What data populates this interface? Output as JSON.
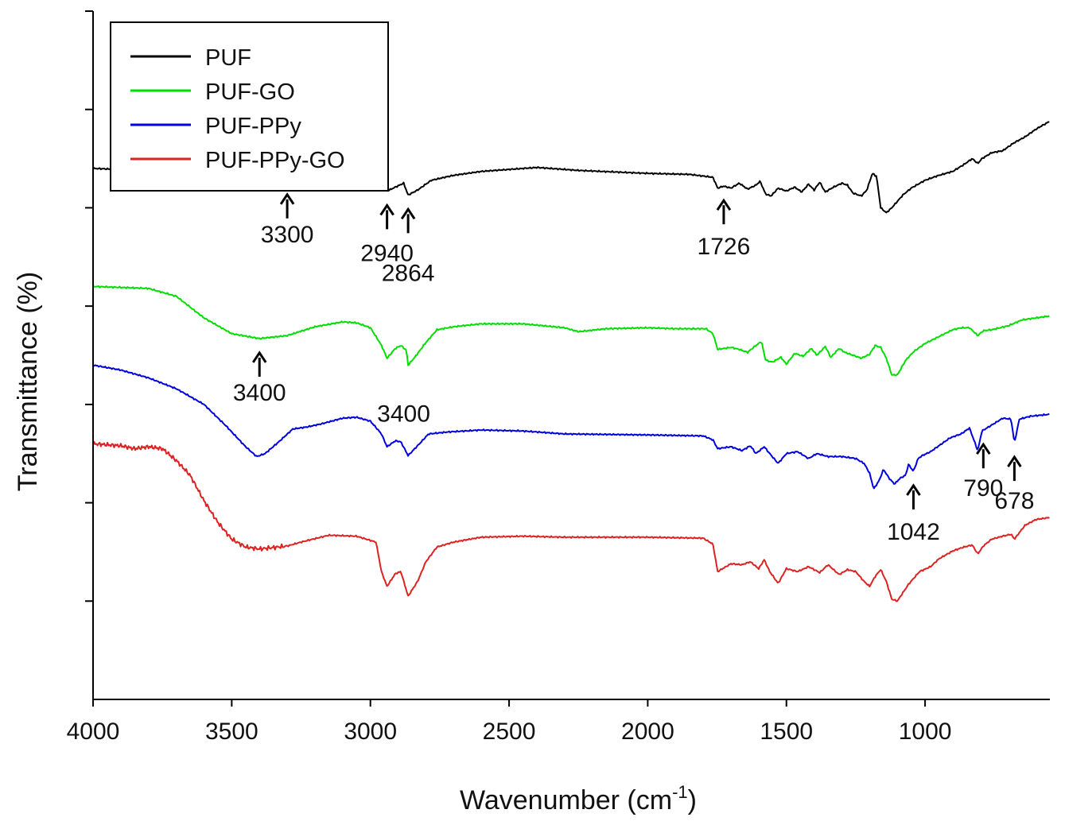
{
  "chart_data": {
    "type": "line",
    "title": "",
    "xlabel": "Wavenumber (cm",
    "xlabel_sup": "-1",
    "xlabel_close": ")",
    "ylabel": "Transmittance  (%)",
    "xlim": [
      4000,
      550
    ],
    "x_reversed": true,
    "xticks": [
      4000,
      3500,
      3000,
      2500,
      2000,
      1500,
      1000
    ],
    "ytick_count": 7,
    "ytick_labels_shown": false,
    "grid": false,
    "legend_position": "top-left",
    "series": [
      {
        "name": "PUF",
        "color": "#000000",
        "points": [
          [
            4000,
            7.4
          ],
          [
            3800,
            7.38
          ],
          [
            3600,
            7.34
          ],
          [
            3450,
            7.29
          ],
          [
            3300,
            7.28
          ],
          [
            3200,
            7.29
          ],
          [
            3050,
            7.32
          ],
          [
            2980,
            7.33
          ],
          [
            2940,
            7.17
          ],
          [
            2910,
            7.21
          ],
          [
            2880,
            7.25
          ],
          [
            2864,
            7.13
          ],
          [
            2830,
            7.18
          ],
          [
            2780,
            7.28
          ],
          [
            2700,
            7.33
          ],
          [
            2600,
            7.37
          ],
          [
            2500,
            7.39
          ],
          [
            2400,
            7.41
          ],
          [
            2350,
            7.4
          ],
          [
            2250,
            7.38
          ],
          [
            2000,
            7.35
          ],
          [
            1850,
            7.34
          ],
          [
            1765,
            7.31
          ],
          [
            1748,
            7.2
          ],
          [
            1726,
            7.22
          ],
          [
            1700,
            7.2
          ],
          [
            1670,
            7.25
          ],
          [
            1640,
            7.19
          ],
          [
            1610,
            7.23
          ],
          [
            1595,
            7.27
          ],
          [
            1575,
            7.14
          ],
          [
            1555,
            7.12
          ],
          [
            1530,
            7.2
          ],
          [
            1500,
            7.17
          ],
          [
            1470,
            7.21
          ],
          [
            1445,
            7.16
          ],
          [
            1420,
            7.24
          ],
          [
            1400,
            7.18
          ],
          [
            1380,
            7.26
          ],
          [
            1360,
            7.16
          ],
          [
            1330,
            7.21
          ],
          [
            1300,
            7.25
          ],
          [
            1280,
            7.23
          ],
          [
            1260,
            7.15
          ],
          [
            1230,
            7.12
          ],
          [
            1210,
            7.18
          ],
          [
            1190,
            7.35
          ],
          [
            1175,
            7.32
          ],
          [
            1160,
            7.0
          ],
          [
            1140,
            6.95
          ],
          [
            1120,
            7.0
          ],
          [
            1080,
            7.13
          ],
          [
            1050,
            7.2
          ],
          [
            1000,
            7.28
          ],
          [
            950,
            7.33
          ],
          [
            900,
            7.37
          ],
          [
            860,
            7.44
          ],
          [
            830,
            7.5
          ],
          [
            810,
            7.45
          ],
          [
            795,
            7.5
          ],
          [
            760,
            7.56
          ],
          [
            720,
            7.58
          ],
          [
            680,
            7.66
          ],
          [
            640,
            7.72
          ],
          [
            600,
            7.8
          ],
          [
            550,
            7.88
          ]
        ]
      },
      {
        "name": "PUF-GO",
        "color": "#00dd00",
        "points": [
          [
            4000,
            6.2
          ],
          [
            3800,
            6.18
          ],
          [
            3700,
            6.1
          ],
          [
            3600,
            5.88
          ],
          [
            3500,
            5.72
          ],
          [
            3400,
            5.67
          ],
          [
            3300,
            5.7
          ],
          [
            3200,
            5.79
          ],
          [
            3100,
            5.84
          ],
          [
            3050,
            5.83
          ],
          [
            3000,
            5.78
          ],
          [
            2960,
            5.6
          ],
          [
            2940,
            5.47
          ],
          [
            2910,
            5.57
          ],
          [
            2890,
            5.6
          ],
          [
            2870,
            5.55
          ],
          [
            2864,
            5.4
          ],
          [
            2840,
            5.48
          ],
          [
            2800,
            5.63
          ],
          [
            2760,
            5.76
          ],
          [
            2700,
            5.79
          ],
          [
            2600,
            5.82
          ],
          [
            2450,
            5.82
          ],
          [
            2300,
            5.78
          ],
          [
            2250,
            5.74
          ],
          [
            2150,
            5.77
          ],
          [
            2000,
            5.78
          ],
          [
            1900,
            5.77
          ],
          [
            1790,
            5.77
          ],
          [
            1765,
            5.72
          ],
          [
            1748,
            5.56
          ],
          [
            1700,
            5.58
          ],
          [
            1670,
            5.56
          ],
          [
            1640,
            5.53
          ],
          [
            1610,
            5.6
          ],
          [
            1590,
            5.64
          ],
          [
            1575,
            5.45
          ],
          [
            1550,
            5.43
          ],
          [
            1520,
            5.48
          ],
          [
            1500,
            5.41
          ],
          [
            1470,
            5.52
          ],
          [
            1440,
            5.49
          ],
          [
            1410,
            5.57
          ],
          [
            1390,
            5.5
          ],
          [
            1360,
            5.59
          ],
          [
            1340,
            5.48
          ],
          [
            1310,
            5.57
          ],
          [
            1290,
            5.53
          ],
          [
            1260,
            5.5
          ],
          [
            1230,
            5.47
          ],
          [
            1200,
            5.51
          ],
          [
            1180,
            5.6
          ],
          [
            1160,
            5.58
          ],
          [
            1140,
            5.47
          ],
          [
            1120,
            5.3
          ],
          [
            1100,
            5.3
          ],
          [
            1070,
            5.45
          ],
          [
            1040,
            5.54
          ],
          [
            1000,
            5.62
          ],
          [
            950,
            5.69
          ],
          [
            900,
            5.76
          ],
          [
            870,
            5.78
          ],
          [
            840,
            5.78
          ],
          [
            810,
            5.7
          ],
          [
            790,
            5.75
          ],
          [
            760,
            5.76
          ],
          [
            700,
            5.8
          ],
          [
            650,
            5.86
          ],
          [
            550,
            5.9
          ]
        ]
      },
      {
        "name": "PUF-PPy",
        "color": "#0000dd",
        "points": [
          [
            4000,
            5.4
          ],
          [
            3900,
            5.35
          ],
          [
            3800,
            5.27
          ],
          [
            3700,
            5.16
          ],
          [
            3600,
            5.0
          ],
          [
            3520,
            4.78
          ],
          [
            3450,
            4.57
          ],
          [
            3410,
            4.47
          ],
          [
            3380,
            4.5
          ],
          [
            3330,
            4.62
          ],
          [
            3280,
            4.75
          ],
          [
            3230,
            4.77
          ],
          [
            3180,
            4.8
          ],
          [
            3100,
            4.86
          ],
          [
            3050,
            4.87
          ],
          [
            3000,
            4.83
          ],
          [
            2960,
            4.7
          ],
          [
            2940,
            4.57
          ],
          [
            2910,
            4.63
          ],
          [
            2890,
            4.62
          ],
          [
            2864,
            4.48
          ],
          [
            2830,
            4.58
          ],
          [
            2790,
            4.7
          ],
          [
            2720,
            4.72
          ],
          [
            2600,
            4.74
          ],
          [
            2450,
            4.73
          ],
          [
            2300,
            4.7
          ],
          [
            2000,
            4.69
          ],
          [
            1800,
            4.68
          ],
          [
            1765,
            4.64
          ],
          [
            1748,
            4.55
          ],
          [
            1700,
            4.57
          ],
          [
            1660,
            4.53
          ],
          [
            1630,
            4.58
          ],
          [
            1610,
            4.5
          ],
          [
            1580,
            4.57
          ],
          [
            1560,
            4.5
          ],
          [
            1530,
            4.4
          ],
          [
            1500,
            4.5
          ],
          [
            1460,
            4.52
          ],
          [
            1420,
            4.45
          ],
          [
            1390,
            4.5
          ],
          [
            1350,
            4.47
          ],
          [
            1300,
            4.47
          ],
          [
            1250,
            4.45
          ],
          [
            1220,
            4.4
          ],
          [
            1200,
            4.3
          ],
          [
            1185,
            4.14
          ],
          [
            1165,
            4.23
          ],
          [
            1150,
            4.34
          ],
          [
            1130,
            4.25
          ],
          [
            1110,
            4.19
          ],
          [
            1090,
            4.25
          ],
          [
            1070,
            4.28
          ],
          [
            1060,
            4.39
          ],
          [
            1042,
            4.32
          ],
          [
            1025,
            4.45
          ],
          [
            1010,
            4.48
          ],
          [
            980,
            4.52
          ],
          [
            950,
            4.58
          ],
          [
            910,
            4.66
          ],
          [
            870,
            4.7
          ],
          [
            840,
            4.76
          ],
          [
            810,
            4.53
          ],
          [
            795,
            4.73
          ],
          [
            760,
            4.79
          ],
          [
            720,
            4.86
          ],
          [
            690,
            4.85
          ],
          [
            678,
            4.61
          ],
          [
            660,
            4.85
          ],
          [
            620,
            4.88
          ],
          [
            550,
            4.9
          ]
        ]
      },
      {
        "name": "PUF-PPy-GO",
        "color": "#dd2222",
        "points": [
          [
            4000,
            4.6
          ],
          [
            3900,
            4.58
          ],
          [
            3850,
            4.55
          ],
          [
            3800,
            4.57
          ],
          [
            3750,
            4.55
          ],
          [
            3700,
            4.43
          ],
          [
            3650,
            4.28
          ],
          [
            3600,
            4.02
          ],
          [
            3550,
            3.8
          ],
          [
            3500,
            3.63
          ],
          [
            3450,
            3.55
          ],
          [
            3400,
            3.53
          ],
          [
            3300,
            3.56
          ],
          [
            3250,
            3.6
          ],
          [
            3150,
            3.67
          ],
          [
            3050,
            3.66
          ],
          [
            2980,
            3.6
          ],
          [
            2960,
            3.3
          ],
          [
            2940,
            3.15
          ],
          [
            2910,
            3.28
          ],
          [
            2890,
            3.3
          ],
          [
            2864,
            3.05
          ],
          [
            2830,
            3.2
          ],
          [
            2800,
            3.4
          ],
          [
            2760,
            3.55
          ],
          [
            2700,
            3.6
          ],
          [
            2600,
            3.65
          ],
          [
            2450,
            3.66
          ],
          [
            2300,
            3.65
          ],
          [
            2000,
            3.65
          ],
          [
            1800,
            3.64
          ],
          [
            1765,
            3.58
          ],
          [
            1748,
            3.3
          ],
          [
            1700,
            3.38
          ],
          [
            1660,
            3.37
          ],
          [
            1630,
            3.4
          ],
          [
            1600,
            3.33
          ],
          [
            1580,
            3.42
          ],
          [
            1560,
            3.3
          ],
          [
            1530,
            3.18
          ],
          [
            1500,
            3.33
          ],
          [
            1460,
            3.3
          ],
          [
            1420,
            3.35
          ],
          [
            1380,
            3.29
          ],
          [
            1350,
            3.37
          ],
          [
            1310,
            3.27
          ],
          [
            1280,
            3.32
          ],
          [
            1250,
            3.3
          ],
          [
            1220,
            3.2
          ],
          [
            1200,
            3.15
          ],
          [
            1180,
            3.25
          ],
          [
            1160,
            3.32
          ],
          [
            1140,
            3.2
          ],
          [
            1120,
            3.02
          ],
          [
            1100,
            3.0
          ],
          [
            1060,
            3.17
          ],
          [
            1020,
            3.3
          ],
          [
            980,
            3.35
          ],
          [
            950,
            3.43
          ],
          [
            900,
            3.51
          ],
          [
            860,
            3.55
          ],
          [
            830,
            3.57
          ],
          [
            810,
            3.48
          ],
          [
            790,
            3.56
          ],
          [
            760,
            3.63
          ],
          [
            720,
            3.66
          ],
          [
            690,
            3.68
          ],
          [
            678,
            3.63
          ],
          [
            640,
            3.77
          ],
          [
            600,
            3.83
          ],
          [
            550,
            3.85
          ]
        ]
      }
    ],
    "annotations": [
      {
        "label": "3300",
        "series": "PUF",
        "x": 3300
      },
      {
        "label": "2940",
        "series": "PUF",
        "x": 2940
      },
      {
        "label": "2864",
        "series": "PUF",
        "x": 2864
      },
      {
        "label": "1726",
        "series": "PUF",
        "x": 1726
      },
      {
        "label": "3400",
        "series": "PUF-GO",
        "x": 3400
      },
      {
        "label": "3400",
        "series": "PUF-PPy",
        "x": 2880,
        "no_arrow": true
      },
      {
        "label": "1042",
        "series": "PUF-PPy",
        "x": 1042
      },
      {
        "label": "790",
        "series": "PUF-PPy",
        "x": 790
      },
      {
        "label": "678",
        "series": "PUF-PPy",
        "x": 678
      }
    ]
  }
}
